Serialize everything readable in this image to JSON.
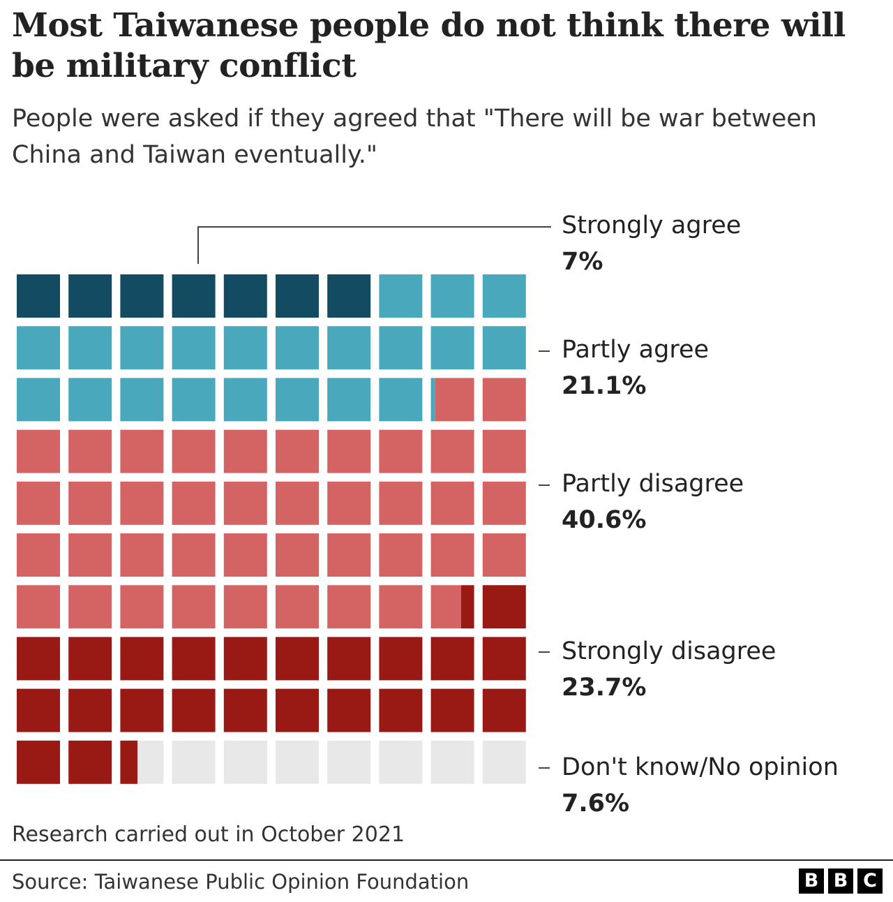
{
  "header": {
    "title": "Most Taiwanese people do not think there will be military conflict",
    "subtitle": "People were asked if they agreed that \"There will be war between China and Taiwan eventually.\""
  },
  "chart_data": {
    "type": "waffle",
    "unit": "%",
    "grid": {
      "rows": 10,
      "cols": 10
    },
    "total": 100,
    "categories": [
      {
        "label": "Strongly agree",
        "value": 7,
        "value_label": "7%",
        "color": "#134b62"
      },
      {
        "label": "Partly agree",
        "value": 21.1,
        "value_label": "21.1%",
        "color": "#4aa8bc"
      },
      {
        "label": "Partly disagree",
        "value": 40.6,
        "value_label": "40.6%",
        "color": "#d46464"
      },
      {
        "label": "Strongly disagree",
        "value": 23.7,
        "value_label": "23.7%",
        "color": "#991915"
      },
      {
        "label": "Don't know/No opinion",
        "value": 7.6,
        "value_label": "7.6%",
        "color": "#e8e8e8"
      }
    ]
  },
  "footer": {
    "note": "Research carried out in October 2021",
    "source": "Source: Taiwanese Public Opinion Foundation",
    "logo": [
      "B",
      "B",
      "C"
    ]
  }
}
